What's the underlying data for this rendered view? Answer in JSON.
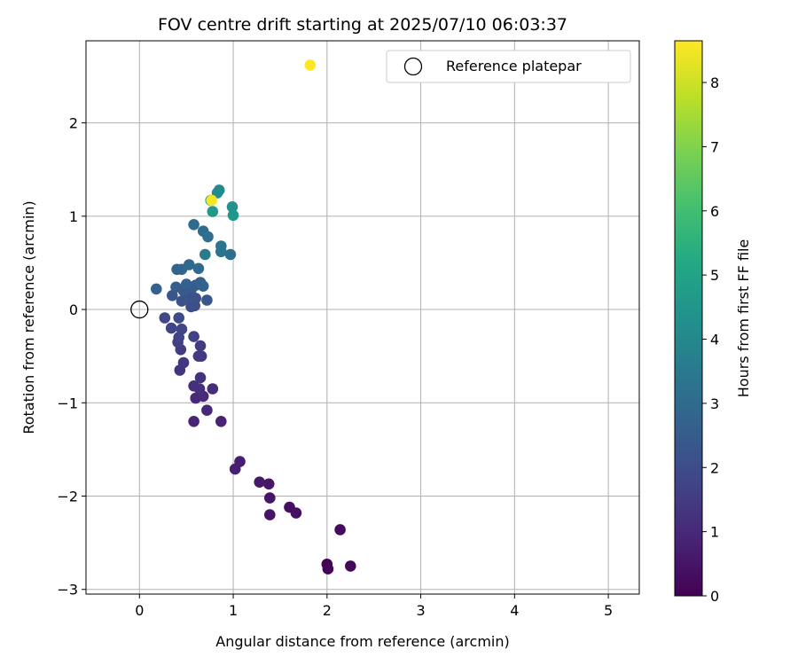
{
  "chart_data": {
    "type": "scatter",
    "title": "FOV centre drift starting at 2025/07/10 06:03:37",
    "xlabel": "Angular distance from reference (arcmin)",
    "ylabel": "Rotation from reference (arcmin)",
    "colorbar_label": "Hours from first FF file",
    "colormap": "viridis",
    "xlim": [
      -0.57,
      5.33
    ],
    "ylim": [
      -3.05,
      2.88
    ],
    "clim": [
      0,
      8.65
    ],
    "xticks": [
      0,
      1,
      2,
      3,
      4,
      5
    ],
    "yticks": [
      -3,
      -2,
      -1,
      0,
      1,
      2
    ],
    "cticks": [
      0,
      1,
      2,
      3,
      4,
      5,
      6,
      7,
      8
    ],
    "grid": true,
    "legend": {
      "label": "Reference platepar",
      "position": "top-right"
    },
    "reference_point": {
      "x": 0,
      "y": 0
    },
    "points": [
      {
        "x": 2.0,
        "y": -2.73,
        "t": 0.05
      },
      {
        "x": 2.01,
        "y": -2.78,
        "t": 0.1
      },
      {
        "x": 2.25,
        "y": -2.75,
        "t": 0.15
      },
      {
        "x": 2.14,
        "y": -2.36,
        "t": 0.25
      },
      {
        "x": 1.6,
        "y": -2.12,
        "t": 0.35
      },
      {
        "x": 1.67,
        "y": -2.18,
        "t": 0.4
      },
      {
        "x": 1.39,
        "y": -2.2,
        "t": 0.45
      },
      {
        "x": 1.39,
        "y": -2.02,
        "t": 0.5
      },
      {
        "x": 1.38,
        "y": -1.87,
        "t": 0.55
      },
      {
        "x": 1.28,
        "y": -1.85,
        "t": 0.6
      },
      {
        "x": 1.07,
        "y": -1.63,
        "t": 0.7
      },
      {
        "x": 1.02,
        "y": -1.71,
        "t": 0.75
      },
      {
        "x": 0.87,
        "y": -1.2,
        "t": 0.85
      },
      {
        "x": 0.58,
        "y": -1.2,
        "t": 0.9
      },
      {
        "x": 0.72,
        "y": -1.08,
        "t": 0.95
      },
      {
        "x": 0.6,
        "y": -0.95,
        "t": 1.0
      },
      {
        "x": 0.68,
        "y": -0.93,
        "t": 1.05
      },
      {
        "x": 0.78,
        "y": -0.85,
        "t": 1.1
      },
      {
        "x": 0.64,
        "y": -0.85,
        "t": 1.15
      },
      {
        "x": 0.58,
        "y": -0.82,
        "t": 1.2
      },
      {
        "x": 0.65,
        "y": -0.73,
        "t": 1.25
      },
      {
        "x": 0.43,
        "y": -0.65,
        "t": 1.3
      },
      {
        "x": 0.47,
        "y": -0.57,
        "t": 1.35
      },
      {
        "x": 0.66,
        "y": -0.5,
        "t": 1.4
      },
      {
        "x": 0.63,
        "y": -0.5,
        "t": 1.45
      },
      {
        "x": 0.65,
        "y": -0.39,
        "t": 1.5
      },
      {
        "x": 0.44,
        "y": -0.43,
        "t": 1.55
      },
      {
        "x": 0.41,
        "y": -0.35,
        "t": 1.6
      },
      {
        "x": 0.58,
        "y": -0.29,
        "t": 1.65
      },
      {
        "x": 0.42,
        "y": -0.3,
        "t": 1.7
      },
      {
        "x": 0.34,
        "y": -0.2,
        "t": 1.75
      },
      {
        "x": 0.45,
        "y": -0.21,
        "t": 1.8
      },
      {
        "x": 0.27,
        "y": -0.09,
        "t": 1.9
      },
      {
        "x": 0.42,
        "y": -0.09,
        "t": 1.95
      },
      {
        "x": 0.55,
        "y": 0.03,
        "t": 2.0
      },
      {
        "x": 0.59,
        "y": 0.04,
        "t": 2.05
      },
      {
        "x": 0.6,
        "y": 0.12,
        "t": 2.1
      },
      {
        "x": 0.5,
        "y": 0.13,
        "t": 2.15
      },
      {
        "x": 0.55,
        "y": 0.16,
        "t": 2.2
      },
      {
        "x": 0.45,
        "y": 0.09,
        "t": 2.25
      },
      {
        "x": 0.35,
        "y": 0.15,
        "t": 2.3
      },
      {
        "x": 0.72,
        "y": 0.1,
        "t": 2.35
      },
      {
        "x": 0.47,
        "y": 0.2,
        "t": 2.4
      },
      {
        "x": 0.56,
        "y": 0.23,
        "t": 2.45
      },
      {
        "x": 0.6,
        "y": 0.26,
        "t": 2.5
      },
      {
        "x": 0.39,
        "y": 0.24,
        "t": 2.55
      },
      {
        "x": 0.18,
        "y": 0.22,
        "t": 2.6
      },
      {
        "x": 0.5,
        "y": 0.27,
        "t": 2.65
      },
      {
        "x": 0.65,
        "y": 0.29,
        "t": 2.7
      },
      {
        "x": 0.68,
        "y": 0.25,
        "t": 2.75
      },
      {
        "x": 0.4,
        "y": 0.43,
        "t": 2.8
      },
      {
        "x": 0.45,
        "y": 0.43,
        "t": 2.85
      },
      {
        "x": 0.53,
        "y": 0.48,
        "t": 2.9
      },
      {
        "x": 0.63,
        "y": 0.44,
        "t": 2.95
      },
      {
        "x": 0.58,
        "y": 0.91,
        "t": 3.0
      },
      {
        "x": 0.68,
        "y": 0.84,
        "t": 3.05
      },
      {
        "x": 0.73,
        "y": 0.78,
        "t": 3.1
      },
      {
        "x": 0.97,
        "y": 0.59,
        "t": 3.2
      },
      {
        "x": 0.87,
        "y": 0.62,
        "t": 3.3
      },
      {
        "x": 0.87,
        "y": 0.68,
        "t": 3.4
      },
      {
        "x": 0.7,
        "y": 0.59,
        "t": 3.6
      },
      {
        "x": 0.85,
        "y": 1.28,
        "t": 4.1
      },
      {
        "x": 0.83,
        "y": 1.25,
        "t": 4.2
      },
      {
        "x": 0.99,
        "y": 1.1,
        "t": 4.4
      },
      {
        "x": 1.0,
        "y": 1.01,
        "t": 4.5
      },
      {
        "x": 0.78,
        "y": 1.05,
        "t": 4.6
      },
      {
        "x": 0.76,
        "y": 1.17,
        "t": 4.9
      },
      {
        "x": 0.77,
        "y": 1.17,
        "t": 8.5
      },
      {
        "x": 1.82,
        "y": 2.62,
        "t": 8.65
      }
    ]
  }
}
